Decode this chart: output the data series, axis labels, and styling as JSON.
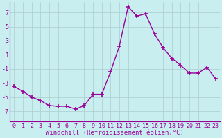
{
  "x": [
    0,
    1,
    2,
    3,
    4,
    5,
    6,
    7,
    8,
    9,
    10,
    11,
    12,
    13,
    14,
    15,
    16,
    17,
    18,
    19,
    20,
    21,
    22,
    23
  ],
  "y": [
    -3.5,
    -4.2,
    -5.0,
    -5.5,
    -6.2,
    -6.3,
    -6.3,
    -6.7,
    -6.2,
    -4.6,
    -4.6,
    -1.4,
    2.2,
    7.8,
    6.5,
    6.8,
    4.0,
    2.0,
    0.5,
    -0.5,
    -1.6,
    -1.6,
    -0.8,
    -2.4
  ],
  "line_color": "#990099",
  "marker": "+",
  "markersize": 4,
  "markeredgewidth": 1.2,
  "linewidth": 1.0,
  "background_color": "#c8eef0",
  "grid_color": "#aacccc",
  "xlabel": "Windchill (Refroidissement éolien,°C)",
  "xlabel_fontsize": 6.5,
  "tick_fontsize": 6.0,
  "ylim": [
    -8.5,
    8.5
  ],
  "yticks": [
    -7,
    -5,
    -3,
    -1,
    1,
    3,
    5,
    7
  ],
  "xlim": [
    -0.5,
    23.5
  ]
}
